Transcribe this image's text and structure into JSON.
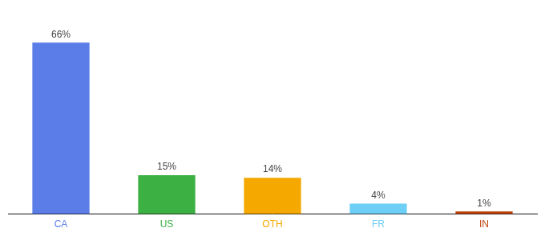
{
  "chart_data": {
    "type": "bar",
    "categories": [
      "CA",
      "US",
      "OTH",
      "FR",
      "IN"
    ],
    "values": [
      66,
      15,
      14,
      4,
      1
    ],
    "value_labels": [
      "66%",
      "15%",
      "14%",
      "4%",
      "1%"
    ],
    "colors": [
      "#5b7de8",
      "#3cb043",
      "#f5a800",
      "#6ecff6",
      "#c0440a"
    ],
    "ylim": [
      0,
      75
    ],
    "data_labels": true,
    "tick_labels": "x",
    "grid": false
  }
}
